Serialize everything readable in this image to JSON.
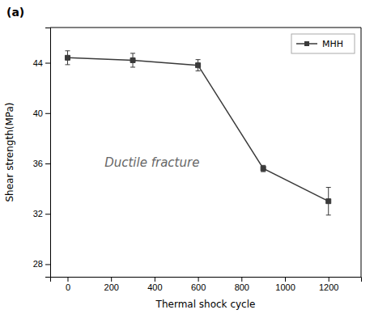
{
  "chart_data": {
    "type": "line",
    "title": "(a)",
    "x": [
      0,
      300,
      600,
      900,
      1200
    ],
    "series": [
      {
        "name": "MHH",
        "color": "#3a3a3a",
        "marker": "square",
        "values": [
          44.4,
          44.2,
          43.8,
          35.6,
          33.0
        ],
        "errors": [
          0.55,
          0.55,
          0.45,
          0.25,
          1.1
        ]
      }
    ],
    "xlabel": "Thermal shock cycle",
    "ylabel": "Shear strength(MPa)",
    "annotation": "Ductile fracture",
    "xlim": [
      -80,
      1350
    ],
    "ylim": [
      27,
      46.8
    ],
    "xticks": [
      0,
      200,
      400,
      600,
      800,
      1000,
      1200
    ],
    "yticks": [
      28,
      32,
      36,
      40,
      44
    ],
    "grid": false,
    "legend": "upper right"
  }
}
